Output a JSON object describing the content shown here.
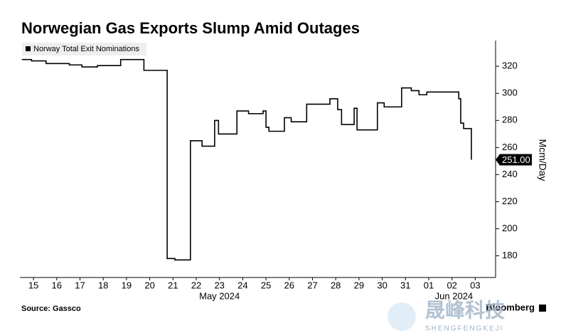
{
  "chart_data": {
    "type": "step",
    "title": "Norwegian Gas Exports Slump Amid Outages",
    "y_axis_label": "Mcm/Day",
    "source": "Source: Gassco",
    "brand": "Bloomberg",
    "watermark": "晟峰科技",
    "watermark_sub": "SHENGFENGKEJI",
    "last_value_label": "251.00",
    "month_labels": [
      {
        "value": "2024-05-23 12:00",
        "label": "May 2024"
      },
      {
        "value": "2024-06-02 14:00",
        "label": "Jun 2024"
      }
    ],
    "x": [
      "2024-05-15 00:00",
      "2024-05-15 10:00",
      "2024-05-16 01:00",
      "2024-05-17 01:00",
      "2024-05-17 14:00",
      "2024-05-18 06:00",
      "2024-05-19 06:00",
      "2024-05-20 06:00",
      "2024-05-21 06:00",
      "2024-05-21 14:00",
      "2024-05-22 06:00",
      "2024-05-22 18:00",
      "2024-05-23 07:00",
      "2024-05-23 11:00",
      "2024-05-24 06:00",
      "2024-05-24 18:00",
      "2024-05-25 09:00",
      "2024-05-25 12:00",
      "2024-05-25 15:00",
      "2024-05-26 07:00",
      "2024-05-26 14:00",
      "2024-05-27 06:00",
      "2024-05-28 06:00",
      "2024-05-28 14:00",
      "2024-05-28 18:00",
      "2024-05-29 07:00",
      "2024-05-29 10:00",
      "2024-05-30 07:00",
      "2024-05-30 14:00",
      "2024-05-31 08:00",
      "2024-05-31 18:00",
      "2024-06-01 02:00",
      "2024-06-01 10:00",
      "2024-06-02 19:00",
      "2024-06-02 21:00",
      "2024-06-03 00:00",
      "2024-06-03 08:00"
    ],
    "series": [
      {
        "name": "Norway Total Exit Nominations",
        "color": "#000000",
        "values": [
          325,
          324,
          322,
          321,
          319.5,
          320.5,
          325,
          317,
          178,
          177,
          265,
          261,
          280,
          270,
          287,
          285,
          287,
          275,
          272,
          282,
          279,
          292,
          296,
          288,
          277,
          289,
          273,
          293,
          290,
          304,
          302,
          299,
          301,
          296,
          278,
          274,
          251
        ]
      }
    ],
    "xlim": [
      "2024-05-14 22:00",
      "2024-06-04 09:00"
    ],
    "xticks": [
      {
        "value": "2024-05-15 12:00",
        "label": "15"
      },
      {
        "value": "2024-05-16 12:00",
        "label": "16"
      },
      {
        "value": "2024-05-17 12:00",
        "label": "17"
      },
      {
        "value": "2024-05-18 12:00",
        "label": "18"
      },
      {
        "value": "2024-05-19 12:00",
        "label": "19"
      },
      {
        "value": "2024-05-20 12:00",
        "label": "20"
      },
      {
        "value": "2024-05-21 12:00",
        "label": "21"
      },
      {
        "value": "2024-05-22 12:00",
        "label": "22"
      },
      {
        "value": "2024-05-23 12:00",
        "label": "23"
      },
      {
        "value": "2024-05-24 12:00",
        "label": "24"
      },
      {
        "value": "2024-05-25 12:00",
        "label": "25"
      },
      {
        "value": "2024-05-26 12:00",
        "label": "26"
      },
      {
        "value": "2024-05-27 12:00",
        "label": "27"
      },
      {
        "value": "2024-05-28 12:00",
        "label": "28"
      },
      {
        "value": "2024-05-29 12:00",
        "label": "29"
      },
      {
        "value": "2024-05-30 12:00",
        "label": "30"
      },
      {
        "value": "2024-05-31 12:00",
        "label": "31"
      },
      {
        "value": "2024-06-01 12:00",
        "label": "01"
      },
      {
        "value": "2024-06-02 12:00",
        "label": "02"
      },
      {
        "value": "2024-06-03 12:00",
        "label": "03"
      }
    ],
    "ylim": [
      164,
      339
    ],
    "yticks": [
      180,
      200,
      220,
      240,
      260,
      280,
      300,
      320
    ],
    "grid": false,
    "legend": "top-left"
  }
}
